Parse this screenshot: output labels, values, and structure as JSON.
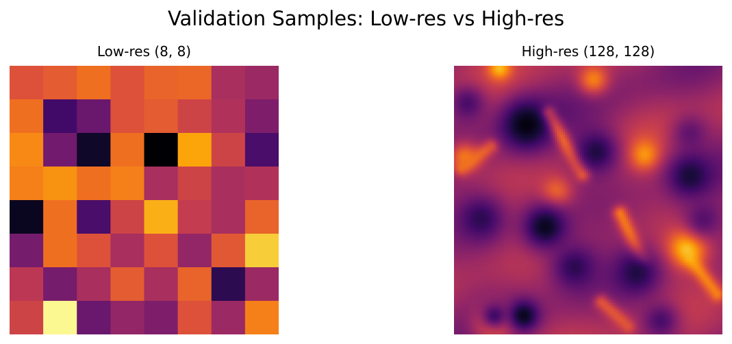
{
  "figure": {
    "title": "Validation Samples: Low-res vs High-res"
  },
  "colors": {
    "colormap": "inferno"
  },
  "chart_data": [
    {
      "type": "heatmap",
      "title": "Low-res (8, 8)",
      "colormap": "inferno",
      "axis": "off",
      "grid": false,
      "shape": [
        8,
        8
      ],
      "values": [
        [
          0.6,
          0.63,
          0.68,
          0.6,
          0.65,
          0.66,
          0.45,
          0.42
        ],
        [
          0.68,
          0.2,
          0.3,
          0.6,
          0.63,
          0.55,
          0.47,
          0.35
        ],
        [
          0.74,
          0.32,
          0.07,
          0.68,
          0.0,
          0.8,
          0.55,
          0.22
        ],
        [
          0.72,
          0.76,
          0.68,
          0.72,
          0.45,
          0.55,
          0.45,
          0.47
        ],
        [
          0.05,
          0.68,
          0.22,
          0.55,
          0.82,
          0.52,
          0.45,
          0.65
        ],
        [
          0.33,
          0.68,
          0.6,
          0.45,
          0.6,
          0.4,
          0.62,
          0.88
        ],
        [
          0.5,
          0.33,
          0.45,
          0.63,
          0.45,
          0.65,
          0.15,
          0.42
        ],
        [
          0.55,
          0.98,
          0.3,
          0.4,
          0.35,
          0.6,
          0.42,
          0.72
        ]
      ]
    },
    {
      "type": "heatmap",
      "title": "High-res (128, 128)",
      "colormap": "inferno",
      "axis": "off",
      "grid": false,
      "shape": [
        128,
        128
      ],
      "background_value": 0.42,
      "dark_vortices": [
        {
          "cx": 0.27,
          "cy": 0.22,
          "r": 0.07,
          "v": 0.02
        },
        {
          "cx": 0.05,
          "cy": 0.14,
          "r": 0.05,
          "v": 0.22
        },
        {
          "cx": 0.53,
          "cy": 0.32,
          "r": 0.06,
          "v": 0.12
        },
        {
          "cx": 0.88,
          "cy": 0.25,
          "r": 0.05,
          "v": 0.28
        },
        {
          "cx": 0.88,
          "cy": 0.41,
          "r": 0.06,
          "v": 0.1
        },
        {
          "cx": 0.1,
          "cy": 0.57,
          "r": 0.06,
          "v": 0.15
        },
        {
          "cx": 0.34,
          "cy": 0.6,
          "r": 0.06,
          "v": 0.05
        },
        {
          "cx": 0.45,
          "cy": 0.75,
          "r": 0.06,
          "v": 0.15
        },
        {
          "cx": 0.68,
          "cy": 0.77,
          "r": 0.06,
          "v": 0.12
        },
        {
          "cx": 0.93,
          "cy": 0.57,
          "r": 0.05,
          "v": 0.25
        },
        {
          "cx": 0.15,
          "cy": 0.93,
          "r": 0.05,
          "v": 0.2
        },
        {
          "cx": 0.77,
          "cy": 0.95,
          "r": 0.05,
          "v": 0.22
        },
        {
          "cx": 0.26,
          "cy": 0.93,
          "r": 0.04,
          "v": 0.05
        }
      ],
      "bright_blobs": [
        {
          "cx": 0.15,
          "cy": 0.95,
          "r": 0.05,
          "v": 0.98
        },
        {
          "cx": 0.87,
          "cy": 0.68,
          "r": 0.05,
          "v": 0.88
        },
        {
          "cx": 0.71,
          "cy": 0.33,
          "r": 0.04,
          "v": 0.78
        },
        {
          "cx": 0.17,
          "cy": 0.01,
          "r": 0.03,
          "v": 0.85
        },
        {
          "cx": 0.52,
          "cy": 0.05,
          "r": 0.04,
          "v": 0.72
        },
        {
          "cx": 0.38,
          "cy": 0.47,
          "r": 0.04,
          "v": 0.68
        },
        {
          "cx": 0.04,
          "cy": 0.34,
          "r": 0.04,
          "v": 0.7
        }
      ],
      "bright_filaments": [
        {
          "from": [
            0.35,
            0.18
          ],
          "to": [
            0.48,
            0.4
          ],
          "v": 0.78
        },
        {
          "from": [
            0.62,
            0.55
          ],
          "to": [
            0.7,
            0.72
          ],
          "v": 0.7
        },
        {
          "from": [
            0.88,
            0.72
          ],
          "to": [
            0.98,
            0.85
          ],
          "v": 0.72
        },
        {
          "from": [
            0.03,
            0.38
          ],
          "to": [
            0.14,
            0.3
          ],
          "v": 0.65
        },
        {
          "from": [
            0.55,
            0.88
          ],
          "to": [
            0.65,
            0.97
          ],
          "v": 0.62
        }
      ]
    }
  ]
}
